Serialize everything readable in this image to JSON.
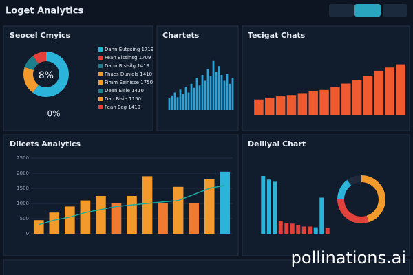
{
  "header": {
    "title": "Loget Analytics"
  },
  "panels": [
    {
      "title": "Seocel Cmyics",
      "type": "donut",
      "values": [
        60,
        20,
        10,
        10
      ],
      "colors": [
        "#2bb3d9",
        "#f39a2c",
        "#1e7f8c",
        "#e0413a"
      ],
      "center_label": "8%",
      "sub_label": "0%",
      "legend": [
        {
          "name": "Dann Eutgsing 1719",
          "color": "#2bb3d9"
        },
        {
          "name": "Fean Bissinsg 1709",
          "color": "#e0413a"
        },
        {
          "name": "Dann Bisisilg 1419",
          "color": "#1e7f8c"
        },
        {
          "name": "Fhaes Duniels 1410",
          "color": "#f39a2c"
        },
        {
          "name": "Fimm Eeinisse 1750",
          "color": "#f39a2c"
        },
        {
          "name": "Dean Elsie 1410",
          "color": "#1e7f8c"
        },
        {
          "name": "Dan Bisie 1150",
          "color": "#f39a2c"
        },
        {
          "name": "Fean Eeg 1419",
          "color": "#e0413a"
        }
      ]
    },
    {
      "title": "Chartets",
      "type": "bar",
      "color": "#29a3d9",
      "ylim": [
        0,
        100
      ],
      "values": [
        20,
        25,
        30,
        22,
        35,
        28,
        40,
        30,
        45,
        38,
        55,
        42,
        60,
        50,
        70,
        58,
        85,
        65,
        75,
        60,
        50,
        62,
        45,
        55
      ]
    },
    {
      "title": "Tecigat Chats",
      "type": "bar",
      "color": "#ef5a30",
      "ylim": [
        0,
        100
      ],
      "values": [
        25,
        28,
        30,
        32,
        35,
        38,
        40,
        45,
        50,
        55,
        62,
        70,
        75,
        80
      ]
    },
    {
      "title": "Dlicets Analytics",
      "type": "bar",
      "ylim": [
        0,
        2500
      ],
      "yticks": [
        0,
        500,
        1000,
        1500,
        2000,
        2500
      ],
      "values": [
        450,
        700,
        900,
        1100,
        1250,
        1000,
        1250,
        1900,
        1000,
        1550,
        1000,
        1800,
        2050
      ],
      "colors": [
        "#f39a2c",
        "#f39a2c",
        "#f39a2c",
        "#f39a2c",
        "#f39a2c",
        "#ef7a30",
        "#f39a2c",
        "#f39a2c",
        "#ef7a30",
        "#f39a2c",
        "#ef7a30",
        "#f39a2c",
        "#2bb3d9"
      ],
      "line": [
        300,
        450,
        550,
        700,
        800,
        900,
        950,
        1000,
        1050,
        1100,
        1300,
        1500,
        1600
      ],
      "line_color": "#1fa9a0"
    },
    {
      "title": "Deiliyal Chart",
      "type": "bar",
      "ylim": [
        0,
        100
      ],
      "values": [
        80,
        75,
        72,
        18,
        15,
        14,
        12,
        10,
        10,
        9,
        50,
        8
      ],
      "colors": [
        "#2bb3d9",
        "#2bb3d9",
        "#2bb3d9",
        "#e0413a",
        "#e0413a",
        "#e0413a",
        "#e0413a",
        "#e0413a",
        "#e0413a",
        "#2bb3d9",
        "#2bb3d9",
        "#e0413a"
      ],
      "donut": {
        "values": [
          45,
          30,
          15,
          10
        ],
        "colors": [
          "#f39a2c",
          "#e0413a",
          "#2bb3d9",
          "#1e2a3c"
        ]
      }
    }
  ],
  "watermark": "pollinations.ai"
}
